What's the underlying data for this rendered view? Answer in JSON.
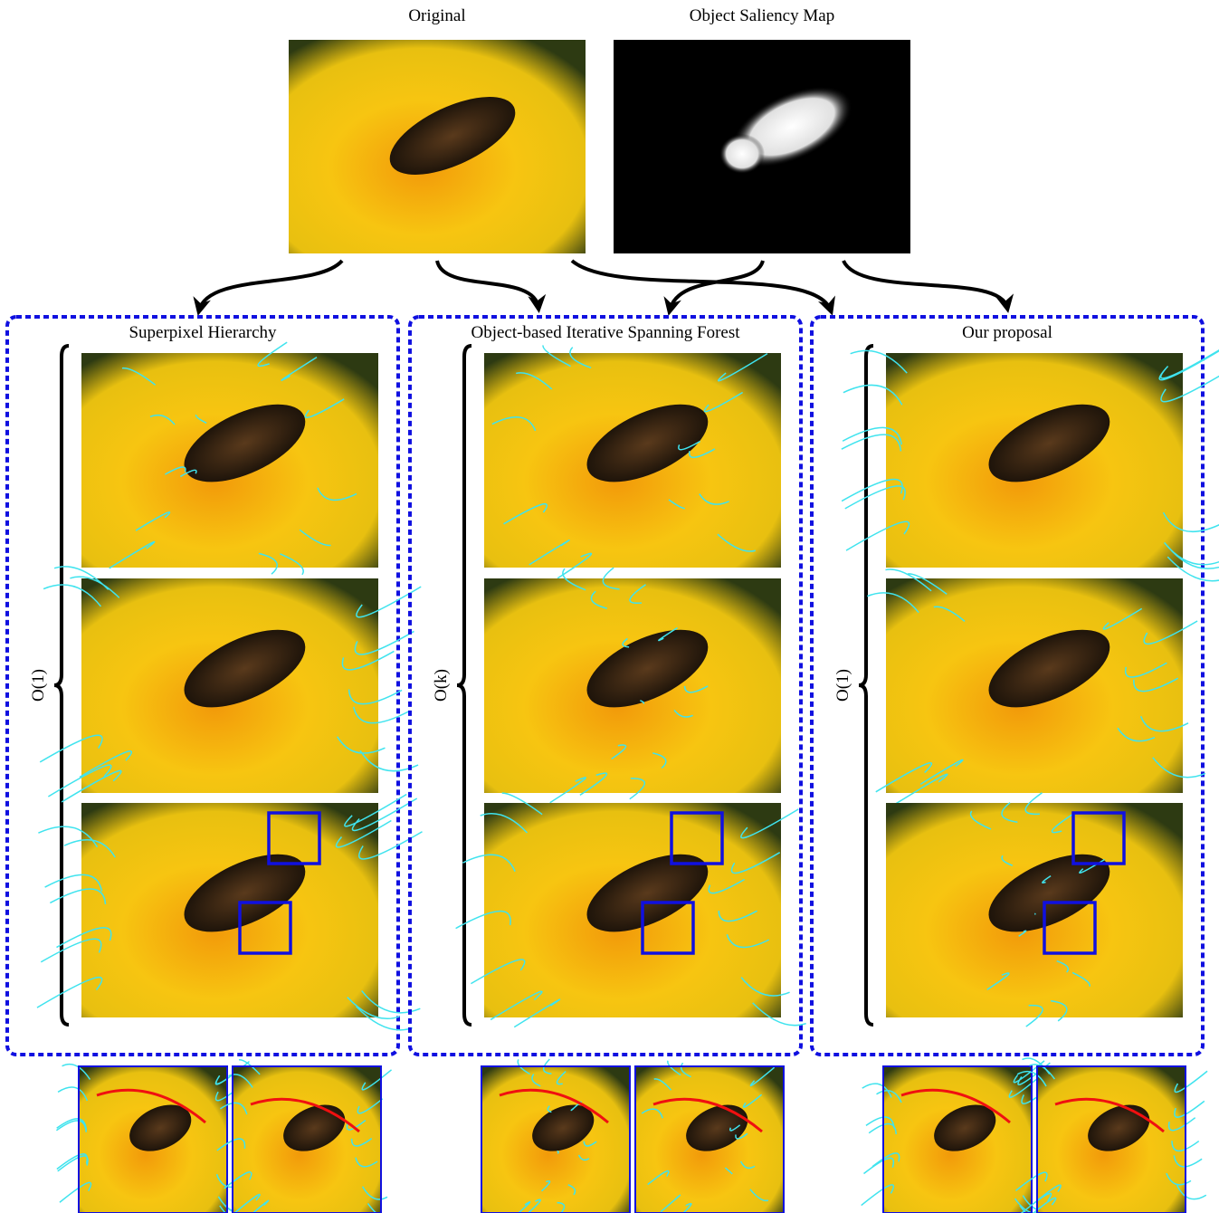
{
  "header": {
    "original": "Original",
    "saliency": "Object Saliency Map"
  },
  "panels": [
    {
      "title": "Superpixel Hierarchy",
      "complexity": "O(1)"
    },
    {
      "title": "Object-based Iterative Spanning Forest",
      "complexity": "O(k)"
    },
    {
      "title": "Our proposal",
      "complexity": "O(1)"
    }
  ]
}
